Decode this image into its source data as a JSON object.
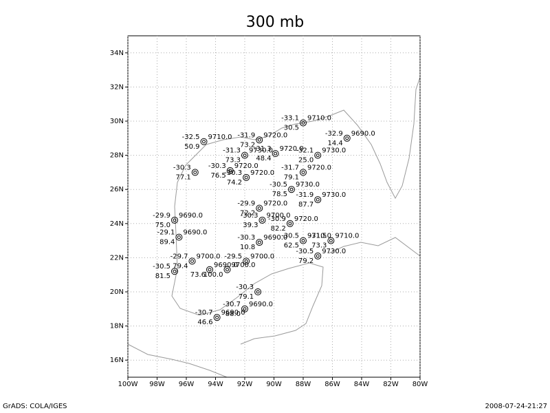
{
  "title": "300 mb",
  "map": {
    "xlim": [
      -100,
      -80
    ],
    "ylim": [
      15,
      35
    ],
    "grid": true,
    "xticks": [
      {
        "value": -100,
        "label": "100W"
      },
      {
        "value": -98,
        "label": "98W"
      },
      {
        "value": -96,
        "label": "96W"
      },
      {
        "value": -94,
        "label": "94W"
      },
      {
        "value": -92,
        "label": "92W"
      },
      {
        "value": -90,
        "label": "90W"
      },
      {
        "value": -88,
        "label": "88W"
      },
      {
        "value": -86,
        "label": "86W"
      },
      {
        "value": -84,
        "label": "84W"
      },
      {
        "value": -82,
        "label": "82W"
      },
      {
        "value": -80,
        "label": "80W"
      }
    ],
    "yticks": [
      {
        "value": 16,
        "label": "16N"
      },
      {
        "value": 18,
        "label": "18N"
      },
      {
        "value": 20,
        "label": "20N"
      },
      {
        "value": 22,
        "label": "22N"
      },
      {
        "value": 24,
        "label": "24N"
      },
      {
        "value": 26,
        "label": "26N"
      },
      {
        "value": 28,
        "label": "28N"
      },
      {
        "value": 30,
        "label": "30N"
      },
      {
        "value": 32,
        "label": "32N"
      },
      {
        "value": 34,
        "label": "34N"
      }
    ]
  },
  "stations": [
    {
      "lon": -88.0,
      "lat": 29.9,
      "temperature": "-33.1",
      "height": "9710.0",
      "humidity": "30.5"
    },
    {
      "lon": -85.0,
      "lat": 29.0,
      "temperature": "-32.9",
      "height": "9690.0",
      "humidity": "14.4"
    },
    {
      "lon": -94.8,
      "lat": 28.8,
      "temperature": "-32.5",
      "height": "9710.0",
      "humidity": "50.9"
    },
    {
      "lon": -91.0,
      "lat": 28.9,
      "temperature": "-31.9",
      "height": "9720.0",
      "humidity": "73.2"
    },
    {
      "lon": -92.0,
      "lat": 28.0,
      "temperature": "-31.3",
      "height": "9730.0",
      "humidity": "73.3"
    },
    {
      "lon": -89.9,
      "lat": 28.1,
      "temperature": "-31.3",
      "height": "9720.0",
      "humidity": "48.4"
    },
    {
      "lon": -87.0,
      "lat": 28.0,
      "temperature": "-32.1",
      "height": "9730.0",
      "humidity": "25.0"
    },
    {
      "lon": -95.4,
      "lat": 27.0,
      "temperature": "-30.3",
      "height": null,
      "humidity": "77.1"
    },
    {
      "lon": -93.0,
      "lat": 27.1,
      "temperature": "-30.3",
      "height": "9720.0",
      "humidity": "76.5"
    },
    {
      "lon": -91.9,
      "lat": 26.7,
      "temperature": "-30.3",
      "height": "9720.0",
      "humidity": "74.2"
    },
    {
      "lon": -88.0,
      "lat": 27.0,
      "temperature": "-31.7",
      "height": "9720.0",
      "humidity": "79.1"
    },
    {
      "lon": -88.8,
      "lat": 26.0,
      "temperature": "-30.5",
      "height": "9730.0",
      "humidity": "78.5"
    },
    {
      "lon": -87.0,
      "lat": 25.4,
      "temperature": "-31.9",
      "height": "9730.0",
      "humidity": "87.7"
    },
    {
      "lon": -91.0,
      "lat": 24.9,
      "temperature": "-29.9",
      "height": "9720.0",
      "humidity": "72.2"
    },
    {
      "lon": -96.8,
      "lat": 24.2,
      "temperature": "-29.9",
      "height": "9690.0",
      "humidity": "75.0"
    },
    {
      "lon": -90.8,
      "lat": 24.2,
      "temperature": "-30.3",
      "height": "9700.0",
      "humidity": "39.3"
    },
    {
      "lon": -88.9,
      "lat": 24.0,
      "temperature": "-30.9",
      "height": "9720.0",
      "humidity": "82.2"
    },
    {
      "lon": -96.5,
      "lat": 23.2,
      "temperature": "-29.1",
      "height": "9690.0",
      "humidity": "89.4"
    },
    {
      "lon": -91.0,
      "lat": 22.9,
      "temperature": "-30.3",
      "height": "9690.0",
      "humidity": "10.8"
    },
    {
      "lon": -88.0,
      "lat": 23.0,
      "temperature": "-30.5",
      "height": "9710.0",
      "humidity": "62.5"
    },
    {
      "lon": -86.1,
      "lat": 23.0,
      "temperature": "-31.5",
      "height": "9710.0",
      "humidity": "73.3"
    },
    {
      "lon": -87.0,
      "lat": 22.1,
      "temperature": "-30.5",
      "height": "9730.0",
      "humidity": "79.2"
    },
    {
      "lon": -95.6,
      "lat": 21.8,
      "temperature": "-29.7",
      "height": "9700.0",
      "humidity": "79.4"
    },
    {
      "lon": -91.9,
      "lat": 21.8,
      "temperature": "-29.5",
      "height": "9700.0",
      "humidity": null
    },
    {
      "lon": -96.8,
      "lat": 21.2,
      "temperature": "-30.5",
      "height": null,
      "humidity": "81.5"
    },
    {
      "lon": -94.4,
      "lat": 21.3,
      "temperature": null,
      "height": "9690.0",
      "humidity": "73.6"
    },
    {
      "lon": -93.2,
      "lat": 21.3,
      "temperature": null,
      "height": "9700.0",
      "humidity": "100.0"
    },
    {
      "lon": -91.1,
      "lat": 20.0,
      "temperature": "-30.3",
      "height": null,
      "humidity": "79.1"
    },
    {
      "lon": -92.0,
      "lat": 19.0,
      "temperature": "-30.7",
      "height": "9690.0",
      "humidity": "88.0"
    },
    {
      "lon": -93.9,
      "lat": 18.5,
      "temperature": "-30.7",
      "height": "9690.0",
      "humidity": "46.6"
    }
  ],
  "footer": {
    "left": "GrADS: COLA/IGES",
    "right": "2008-07-24-21:27"
  }
}
